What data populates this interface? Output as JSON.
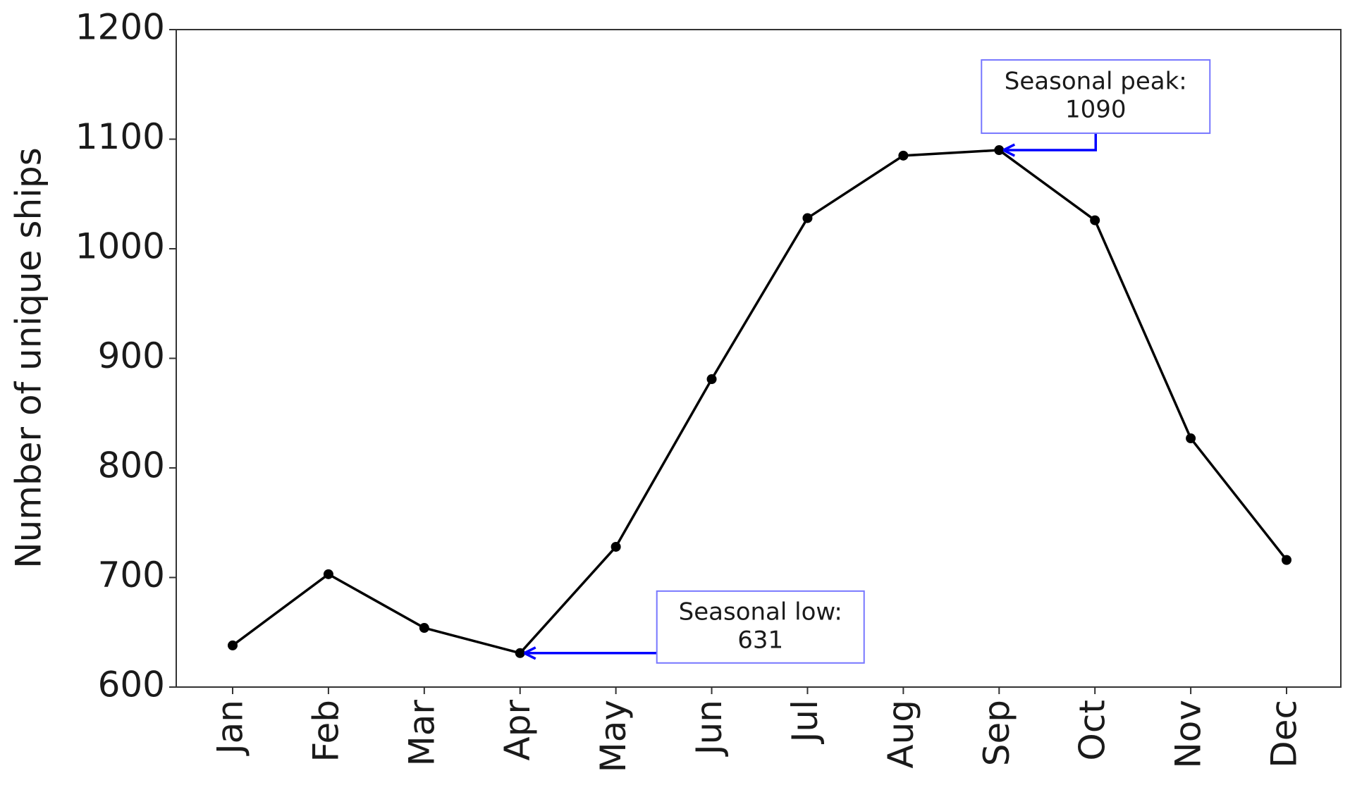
{
  "chart_data": {
    "type": "line",
    "y_label": "Number of unique ships",
    "categories": [
      "Jan",
      "Feb",
      "Mar",
      "Apr",
      "May",
      "Jun",
      "Jul",
      "Aug",
      "Sep",
      "Oct",
      "Nov",
      "Dec"
    ],
    "series": [
      {
        "name": "Unique ships",
        "color": "#000000",
        "values": [
          638,
          703,
          654,
          631,
          728,
          881,
          1028,
          1085,
          1090,
          1026,
          827,
          716
        ]
      }
    ],
    "ylim": [
      600,
      1200
    ],
    "yticks": [
      600,
      700,
      800,
      900,
      1000,
      1100,
      1200
    ],
    "grid": false,
    "annotations": [
      {
        "text": [
          "Seasonal peak:",
          "1090"
        ],
        "x": "Sep",
        "y": 1090,
        "color": "#0000ff"
      },
      {
        "text": [
          "Seasonal low:",
          "631"
        ],
        "x": "Apr",
        "y": 631,
        "color": "#0000ff"
      }
    ]
  }
}
